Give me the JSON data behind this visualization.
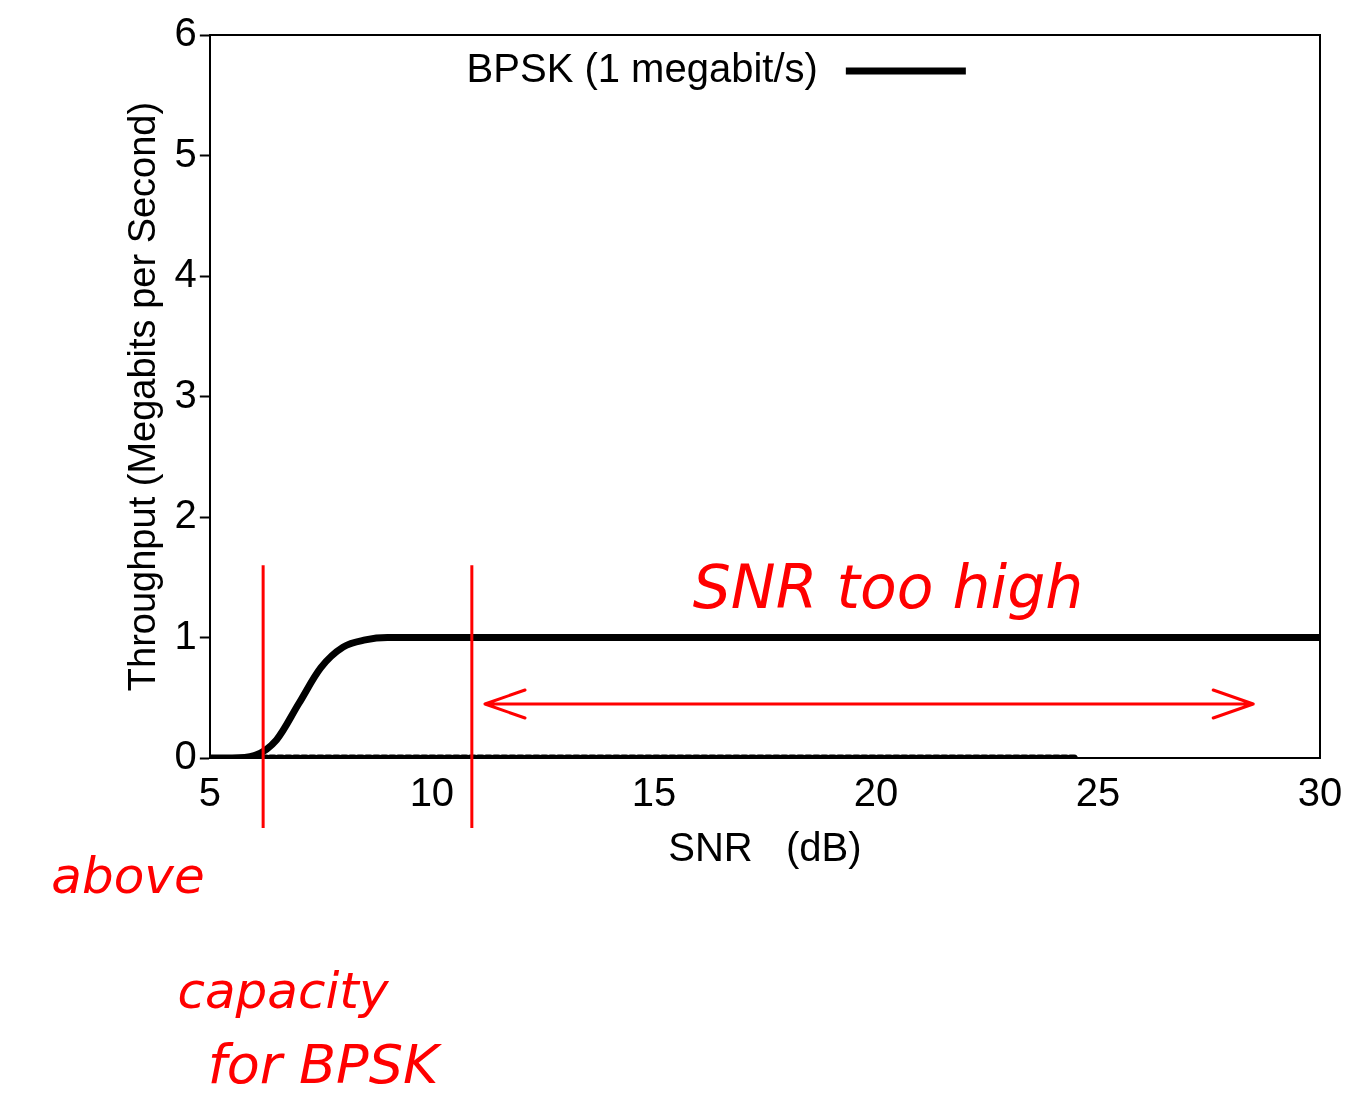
{
  "chart_data": {
    "type": "line",
    "xlabel": "SNR   (dB)",
    "ylabel": "Throughput (Megabits per Second)",
    "xlim": [
      5,
      30
    ],
    "xticks": [
      5,
      10,
      15,
      20,
      25,
      30
    ],
    "ylim": [
      0,
      6
    ],
    "yticks": [
      0,
      1,
      2,
      3,
      4,
      5,
      6
    ],
    "series": [
      {
        "name": "BPSK (1 megabit/s)",
        "color": "#000000",
        "x": [
          5,
          5.5,
          6,
          6.5,
          7,
          7.5,
          8,
          8.5,
          9,
          10,
          30
        ],
        "values": [
          0,
          0,
          0.02,
          0.15,
          0.45,
          0.75,
          0.92,
          0.98,
          1,
          1,
          1
        ]
      },
      {
        "color": "#000000",
        "line_style": "dotted",
        "x": [
          6,
          24.5
        ],
        "values": [
          0,
          0
        ]
      }
    ],
    "ref_lines": [
      {
        "axis": "x",
        "value": 6.2,
        "color": "#ff0000"
      },
      {
        "axis": "x",
        "value": 10.9,
        "color": "#ff0000"
      }
    ],
    "annotations": [
      "SNR too high",
      "above",
      "capacity",
      "for BPSK"
    ],
    "legend": "top",
    "grid": false,
    "marker": "none"
  }
}
